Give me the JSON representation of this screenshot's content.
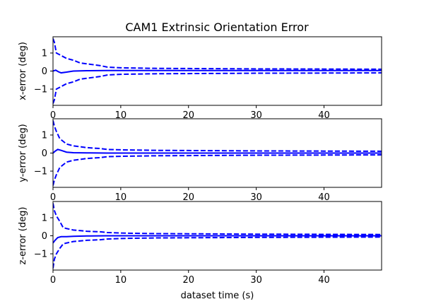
{
  "chart_data": {
    "title": "CAM1 Extrinsic Orientation Error",
    "colors": {
      "series": "#0000ff",
      "frame": "#000000"
    },
    "panels": [
      {
        "type": "line",
        "ylabel": "x-error (deg)",
        "xlabel": "",
        "xlim": [
          0,
          48.5
        ],
        "ylim": [
          -1.9,
          1.9
        ],
        "xticks": [
          0,
          10,
          20,
          30,
          40
        ],
        "yticks": [
          -1,
          0,
          1
        ],
        "series": [
          {
            "style": "solid",
            "x": [
              0,
              0.4,
              0.8,
              1.2,
              2,
              3,
              5,
              8,
              12,
              20,
              30,
              40,
              48.5
            ],
            "y": [
              0,
              0.05,
              -0.04,
              -0.1,
              -0.06,
              0.0,
              0.02,
              0.03,
              0.03,
              0.03,
              0.03,
              0.03,
              0.03
            ]
          },
          {
            "style": "dashed",
            "x": [
              0,
              0.2,
              0.5,
              1,
              2,
              3,
              4,
              6,
              7,
              8,
              10,
              15,
              20,
              30,
              40,
              48.5
            ],
            "y": [
              1.8,
              1.6,
              1.0,
              0.9,
              0.7,
              0.6,
              0.45,
              0.35,
              0.3,
              0.22,
              0.18,
              0.15,
              0.14,
              0.12,
              0.11,
              0.1
            ]
          },
          {
            "style": "dashed",
            "x": [
              0,
              0.2,
              0.5,
              1,
              2,
              3,
              4,
              6,
              7,
              8,
              10,
              15,
              20,
              30,
              40,
              48.5
            ],
            "y": [
              -1.8,
              -1.6,
              -1.0,
              -0.9,
              -0.7,
              -0.6,
              -0.45,
              -0.35,
              -0.3,
              -0.22,
              -0.18,
              -0.15,
              -0.14,
              -0.12,
              -0.11,
              -0.1
            ]
          }
        ]
      },
      {
        "type": "line",
        "ylabel": "y-error (deg)",
        "xlabel": "",
        "xlim": [
          0,
          48.5
        ],
        "ylim": [
          -1.9,
          1.9
        ],
        "xticks": [
          0,
          10,
          20,
          30,
          40
        ],
        "yticks": [
          -1,
          0,
          1
        ],
        "series": [
          {
            "style": "solid",
            "x": [
              0,
              0.3,
              0.7,
              1.2,
              2,
              3,
              5,
              8,
              12,
              20,
              30,
              40,
              48.5
            ],
            "y": [
              0,
              0.1,
              0.2,
              0.15,
              0.05,
              0.02,
              0.01,
              0.0,
              0.0,
              0.0,
              0.0,
              0.0,
              0.0
            ]
          },
          {
            "style": "dashed",
            "x": [
              0,
              0.2,
              0.5,
              1,
              2,
              3,
              5,
              7,
              8,
              10,
              15,
              20,
              30,
              40,
              48.5
            ],
            "y": [
              1.8,
              1.5,
              1.2,
              0.8,
              0.5,
              0.4,
              0.3,
              0.25,
              0.2,
              0.18,
              0.15,
              0.14,
              0.12,
              0.11,
              0.1
            ]
          },
          {
            "style": "dashed",
            "x": [
              0,
              0.2,
              0.5,
              1,
              2,
              3,
              5,
              7,
              8,
              10,
              15,
              20,
              30,
              40,
              48.5
            ],
            "y": [
              -1.8,
              -1.5,
              -1.2,
              -0.8,
              -0.5,
              -0.4,
              -0.3,
              -0.25,
              -0.2,
              -0.18,
              -0.15,
              -0.14,
              -0.12,
              -0.11,
              -0.1
            ]
          }
        ]
      },
      {
        "type": "line",
        "ylabel": "z-error (deg)",
        "xlabel": "dataset time (s)",
        "xlim": [
          0,
          48.5
        ],
        "ylim": [
          -1.9,
          1.9
        ],
        "xticks": [
          0,
          10,
          20,
          30,
          40
        ],
        "yticks": [
          -1,
          0,
          1
        ],
        "series": [
          {
            "style": "solid",
            "x": [
              0,
              0.3,
              0.7,
              1.2,
              2,
              3,
              5,
              8,
              12,
              20,
              30,
              40,
              48.5
            ],
            "y": [
              -0.4,
              -0.25,
              -0.1,
              -0.05,
              -0.05,
              -0.03,
              -0.01,
              0.0,
              0.0,
              0.0,
              0.0,
              0.0,
              0.0
            ]
          },
          {
            "style": "dashed",
            "x": [
              0,
              0.2,
              0.5,
              1,
              1.5,
              2,
              3,
              5,
              7,
              8,
              10,
              15,
              20,
              30,
              40,
              48.5
            ],
            "y": [
              1.8,
              1.4,
              1.1,
              0.8,
              0.45,
              0.4,
              0.32,
              0.25,
              0.22,
              0.18,
              0.15,
              0.12,
              0.11,
              0.09,
              0.08,
              0.07
            ]
          },
          {
            "style": "dashed",
            "x": [
              0,
              0.2,
              0.5,
              1,
              1.5,
              2,
              3,
              5,
              7,
              8,
              10,
              15,
              20,
              30,
              40,
              48.5
            ],
            "y": [
              -1.8,
              -1.3,
              -1.0,
              -0.7,
              -0.45,
              -0.4,
              -0.32,
              -0.25,
              -0.22,
              -0.18,
              -0.15,
              -0.12,
              -0.11,
              -0.09,
              -0.08,
              -0.07
            ]
          }
        ]
      }
    ]
  }
}
